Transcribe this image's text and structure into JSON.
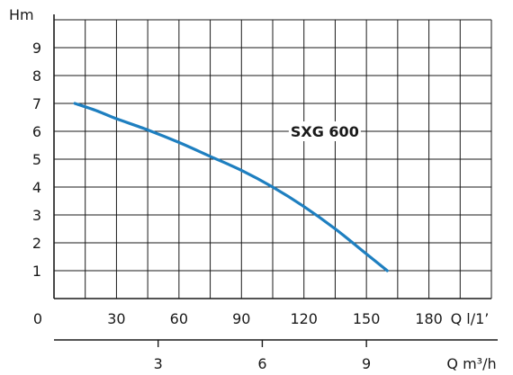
{
  "chart_data": {
    "type": "line",
    "title": "",
    "ylabel": "Hm",
    "xlabel": "Q l/1’",
    "x2label": "Q m³/h",
    "xlim": [
      0,
      210
    ],
    "ylim": [
      0,
      10
    ],
    "x2lim": [
      0,
      12.6
    ],
    "grid": true,
    "x_ticks": [
      "0",
      "30",
      "60",
      "90",
      "120",
      "150",
      "180"
    ],
    "x_tick_values": [
      0,
      30,
      60,
      90,
      120,
      150,
      180
    ],
    "y_ticks": [
      "1",
      "2",
      "3",
      "4",
      "5",
      "6",
      "7",
      "8",
      "9"
    ],
    "y_tick_values": [
      1,
      2,
      3,
      4,
      5,
      6,
      7,
      8,
      9
    ],
    "x2_ticks": [
      "3",
      "6",
      "9"
    ],
    "x2_tick_values": [
      3,
      6,
      9
    ],
    "series": [
      {
        "name": "SXG 600",
        "color": "#1e7fc0",
        "x": [
          10,
          20,
          30,
          45,
          60,
          75,
          90,
          105,
          120,
          135,
          150,
          160
        ],
        "y": [
          7.0,
          6.75,
          6.45,
          6.05,
          5.6,
          5.1,
          4.6,
          4.0,
          3.3,
          2.5,
          1.6,
          1.0
        ]
      }
    ],
    "annotation": {
      "text": "SXG 600",
      "x": 130,
      "y": 6
    },
    "grid_color": "#1a1a1a",
    "axis_color": "#1a1a1a"
  }
}
